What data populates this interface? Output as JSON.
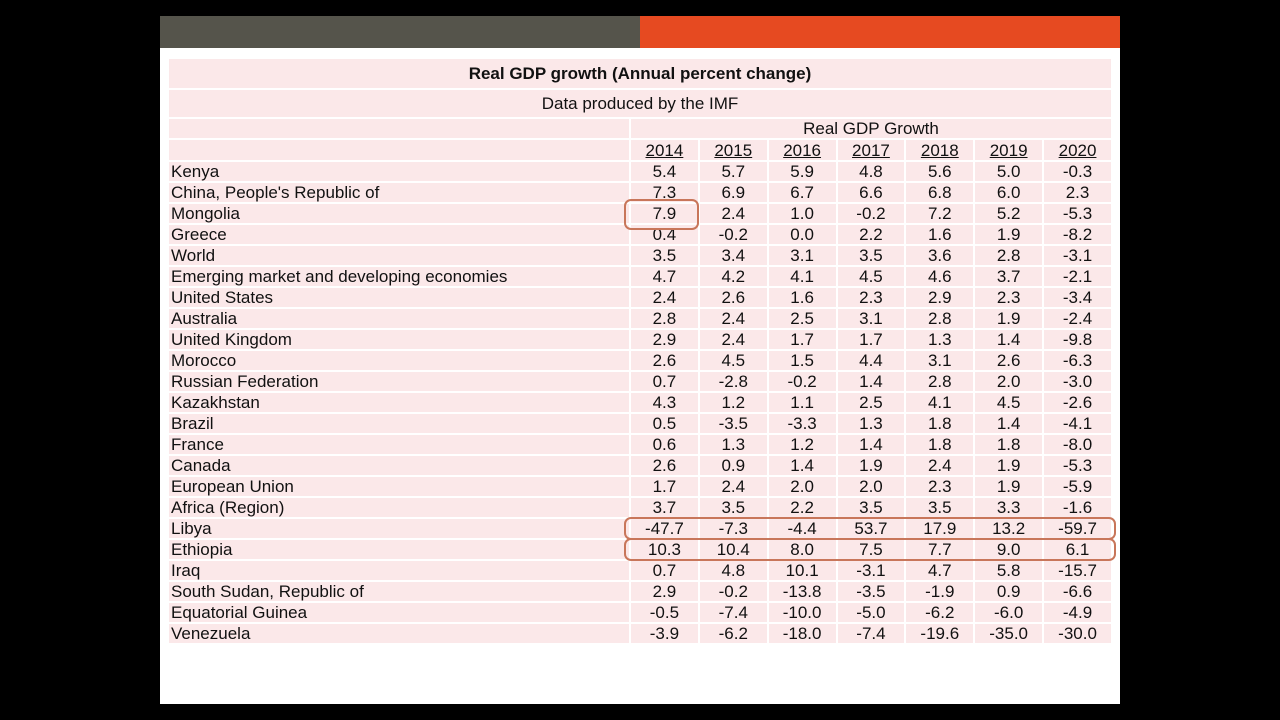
{
  "table": {
    "title": "Real GDP growth (Annual percent change)",
    "subtitle": "Data produced by the IMF",
    "group_header": "Real GDP Growth",
    "years": [
      "2014",
      "2015",
      "2016",
      "2017",
      "2018",
      "2019",
      "2020"
    ],
    "rows": [
      {
        "country": "Kenya",
        "values": [
          "5.4",
          "5.7",
          "5.9",
          "4.8",
          "5.6",
          "5.0",
          "-0.3"
        ]
      },
      {
        "country": "China, People's Republic of",
        "values": [
          "7.3",
          "6.9",
          "6.7",
          "6.6",
          "6.8",
          "6.0",
          "2.3"
        ]
      },
      {
        "country": "Mongolia",
        "values": [
          "7.9",
          "2.4",
          "1.0",
          "-0.2",
          "7.2",
          "5.2",
          "-5.3"
        ]
      },
      {
        "country": "Greece",
        "values": [
          "0.4",
          "-0.2",
          "0.0",
          "2.2",
          "1.6",
          "1.9",
          "-8.2"
        ]
      },
      {
        "country": "World",
        "values": [
          "3.5",
          "3.4",
          "3.1",
          "3.5",
          "3.6",
          "2.8",
          "-3.1"
        ]
      },
      {
        "country": "Emerging market and developing economies",
        "values": [
          "4.7",
          "4.2",
          "4.1",
          "4.5",
          "4.6",
          "3.7",
          "-2.1"
        ]
      },
      {
        "country": "United States",
        "values": [
          "2.4",
          "2.6",
          "1.6",
          "2.3",
          "2.9",
          "2.3",
          "-3.4"
        ]
      },
      {
        "country": "Australia",
        "values": [
          "2.8",
          "2.4",
          "2.5",
          "3.1",
          "2.8",
          "1.9",
          "-2.4"
        ]
      },
      {
        "country": "United Kingdom",
        "values": [
          "2.9",
          "2.4",
          "1.7",
          "1.7",
          "1.3",
          "1.4",
          "-9.8"
        ]
      },
      {
        "country": "Morocco",
        "values": [
          "2.6",
          "4.5",
          "1.5",
          "4.4",
          "3.1",
          "2.6",
          "-6.3"
        ]
      },
      {
        "country": "Russian Federation",
        "values": [
          "0.7",
          "-2.8",
          "-0.2",
          "1.4",
          "2.8",
          "2.0",
          "-3.0"
        ]
      },
      {
        "country": "Kazakhstan",
        "values": [
          "4.3",
          "1.2",
          "1.1",
          "2.5",
          "4.1",
          "4.5",
          "-2.6"
        ]
      },
      {
        "country": "Brazil",
        "values": [
          "0.5",
          "-3.5",
          "-3.3",
          "1.3",
          "1.8",
          "1.4",
          "-4.1"
        ]
      },
      {
        "country": "France",
        "values": [
          "0.6",
          "1.3",
          "1.2",
          "1.4",
          "1.8",
          "1.8",
          "-8.0"
        ]
      },
      {
        "country": "Canada",
        "values": [
          "2.6",
          "0.9",
          "1.4",
          "1.9",
          "2.4",
          "1.9",
          "-5.3"
        ]
      },
      {
        "country": "European Union",
        "values": [
          "1.7",
          "2.4",
          "2.0",
          "2.0",
          "2.3",
          "1.9",
          "-5.9"
        ]
      },
      {
        "country": "Africa (Region)",
        "values": [
          "3.7",
          "3.5",
          "2.2",
          "3.5",
          "3.5",
          "3.3",
          "-1.6"
        ]
      },
      {
        "country": "Libya",
        "values": [
          "-47.7",
          "-7.3",
          "-4.4",
          "53.7",
          "17.9",
          "13.2",
          "-59.7"
        ]
      },
      {
        "country": "Ethiopia",
        "values": [
          "10.3",
          "10.4",
          "8.0",
          "7.5",
          "7.7",
          "9.0",
          "6.1"
        ]
      },
      {
        "country": "Iraq",
        "values": [
          "0.7",
          "4.8",
          "10.1",
          "-3.1",
          "4.7",
          "5.8",
          "-15.7"
        ]
      },
      {
        "country": "South Sudan, Republic of",
        "values": [
          "2.9",
          "-0.2",
          "-13.8",
          "-3.5",
          "-1.9",
          "0.9",
          "-6.6"
        ]
      },
      {
        "country": "Equatorial Guinea",
        "values": [
          "-0.5",
          "-7.4",
          "-10.0",
          "-5.0",
          "-6.2",
          "-6.0",
          "-4.9"
        ]
      },
      {
        "country": "Venezuela",
        "values": [
          "-3.9",
          "-6.2",
          "-18.0",
          "-7.4",
          "-19.6",
          "-35.0",
          "-30.0"
        ]
      }
    ]
  },
  "highlights": [
    {
      "country": "Mongolia",
      "years": [
        "2014"
      ]
    },
    {
      "country": "Libya",
      "years": [
        "2014",
        "2015",
        "2016",
        "2017",
        "2018",
        "2019",
        "2020"
      ]
    },
    {
      "country": "Ethiopia",
      "years": [
        "2014",
        "2015",
        "2016",
        "2017",
        "2018",
        "2019",
        "2020"
      ]
    }
  ],
  "colors": {
    "bar_left": "#55544b",
    "bar_right": "#e64a21",
    "cell": "#fbe8e9",
    "highlight": "#c8765a"
  }
}
